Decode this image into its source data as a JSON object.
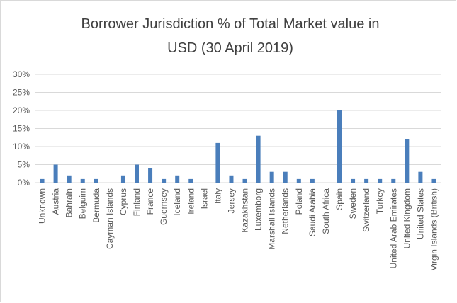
{
  "chart_data": {
    "type": "bar",
    "title": [
      "Borrower Jurisdiction % of Total Market value in",
      "USD (30 April 2019)"
    ],
    "categories": [
      "Unknown",
      "Austria",
      "Bahrain",
      "Belguim",
      "Bermuda",
      "Cayman Islands",
      "Cyprus",
      "Finland",
      "France",
      "Guernsey",
      "Iceland",
      "Ireland",
      "Israel",
      "Italy",
      "Jersey",
      "Kazakhstan",
      "Luxemborg",
      "Marshall Islands",
      "Netherlands",
      "Poland",
      "Saudi Arabia",
      "South Africa",
      "Spain",
      "Sweden",
      "Switzerland",
      "Turkey",
      "United Arab Emirates",
      "United Kingdom",
      "United States",
      "Virgin Islands (British)"
    ],
    "values": [
      1,
      5,
      2,
      1,
      1,
      0,
      2,
      5,
      4,
      1,
      2,
      1,
      0,
      11,
      2,
      1,
      13,
      3,
      3,
      1,
      1,
      0,
      20,
      1,
      1,
      1,
      1,
      12,
      3,
      1
    ],
    "color": "#4a7ebb",
    "ylim": [
      0,
      30
    ],
    "yticks": [
      {
        "value": 0,
        "label": "0%"
      },
      {
        "value": 5,
        "label": "5%"
      },
      {
        "value": 10,
        "label": "10%"
      },
      {
        "value": 15,
        "label": "15%"
      },
      {
        "value": 20,
        "label": "20%"
      },
      {
        "value": 25,
        "label": "25%"
      },
      {
        "value": 30,
        "label": "30%"
      }
    ],
    "grid": true
  }
}
